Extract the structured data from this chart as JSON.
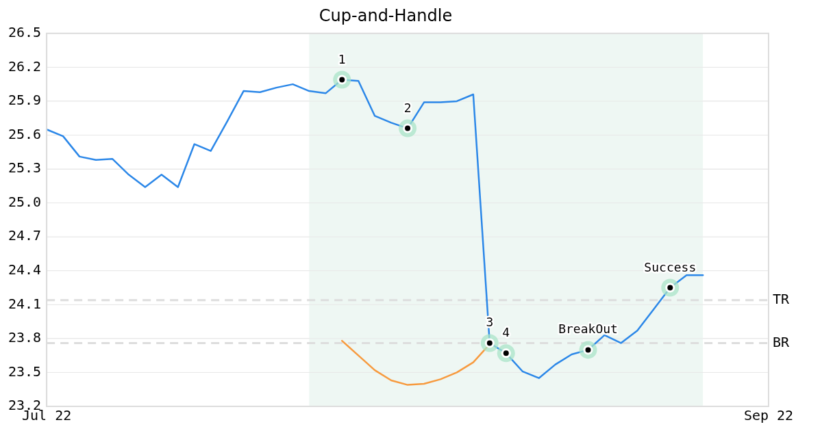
{
  "chart_data": {
    "type": "line",
    "title": "Cup-and-Handle",
    "categories": [
      "Jul 22",
      null,
      null,
      null,
      null,
      null,
      null,
      null,
      null,
      null,
      null,
      null,
      null,
      null,
      null,
      null,
      null,
      null,
      null,
      null,
      null,
      null,
      null,
      null,
      null,
      null,
      null,
      null,
      null,
      null,
      null,
      null,
      null,
      null,
      null,
      null,
      null,
      null,
      null,
      null,
      null,
      null,
      null,
      null,
      "Sep 22"
    ],
    "series": [
      {
        "color": "#2b87e8",
        "values": [
          25.65,
          25.59,
          25.41,
          25.38,
          25.39,
          25.25,
          25.14,
          25.25,
          25.14,
          25.52,
          25.46,
          25.72,
          25.99,
          25.98,
          26.02,
          26.05,
          25.99,
          25.97,
          26.09,
          26.08,
          25.77,
          25.71,
          25.66,
          25.89,
          25.89,
          25.9,
          25.96,
          23.76,
          23.67,
          23.51,
          23.45,
          23.57,
          23.66,
          23.7,
          23.83,
          23.76,
          23.87,
          24.06,
          24.25,
          24.36,
          24.36,
          null,
          null,
          null,
          null
        ]
      },
      {
        "color": "#f79a3e",
        "values": [
          null,
          null,
          null,
          null,
          null,
          null,
          null,
          null,
          null,
          null,
          null,
          null,
          null,
          null,
          null,
          null,
          null,
          null,
          23.78,
          23.65,
          23.52,
          23.43,
          23.39,
          23.4,
          23.44,
          23.5,
          23.59,
          23.75,
          null,
          null,
          null,
          null,
          null,
          null,
          null,
          null,
          null,
          null,
          null,
          null,
          null,
          null,
          null,
          null,
          null
        ]
      }
    ],
    "ylim": [
      23.2,
      26.5
    ],
    "yticks": [
      {
        "value": 23.2,
        "label": "23.2"
      },
      {
        "value": 23.5,
        "label": "23.5"
      },
      {
        "value": 23.8,
        "label": "23.8"
      },
      {
        "value": 24.1,
        "label": "24.1"
      },
      {
        "value": 24.4,
        "label": "24.4"
      },
      {
        "value": 24.7,
        "label": "24.7"
      },
      {
        "value": 25.0,
        "label": "25.0"
      },
      {
        "value": 25.3,
        "label": "25.3"
      },
      {
        "value": 25.6,
        "label": "25.6"
      },
      {
        "value": 25.9,
        "label": "25.9"
      },
      {
        "value": 26.2,
        "label": "26.2"
      },
      {
        "value": 26.5,
        "label": "26.5"
      }
    ],
    "ref_lines": [
      {
        "axis": "y",
        "value": 24.14,
        "label": "TR",
        "color": "#dddddd",
        "line_style": "dashed"
      },
      {
        "axis": "y",
        "value": 23.76,
        "label": "BR",
        "color": "#dddddd",
        "line_style": "dashed"
      }
    ],
    "annotations": [
      {
        "text": "1",
        "y": 26.09
      },
      {
        "text": "2",
        "y": 25.66
      },
      {
        "text": "3",
        "y": 23.76
      },
      {
        "text": "4",
        "y": 23.67
      },
      {
        "text": "BreakOut",
        "y": 23.7
      },
      {
        "text": "Success",
        "y": 24.25
      }
    ],
    "grid": "y",
    "legend": false,
    "marker": "none",
    "line_style": "solid"
  }
}
